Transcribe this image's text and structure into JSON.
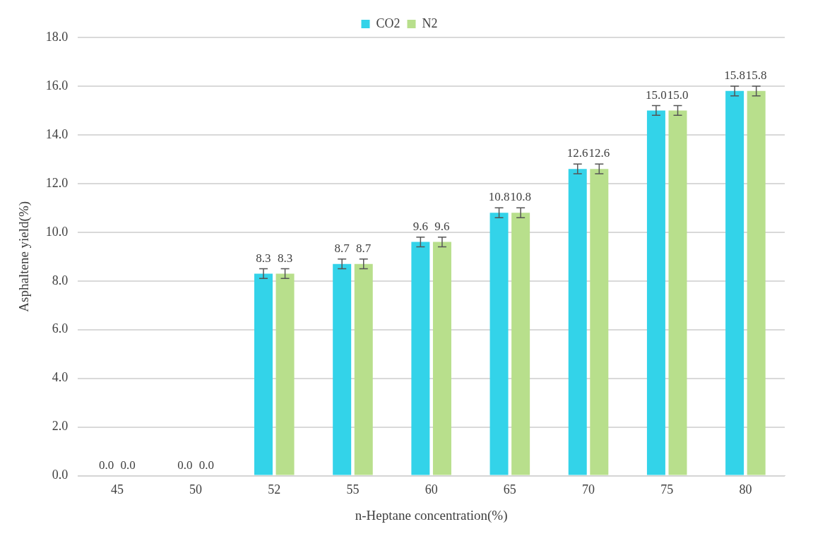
{
  "chart_data": {
    "type": "bar",
    "xlabel": "n-Heptane concentration(%)",
    "ylabel": "Asphaltene yield(%)",
    "categories": [
      "45",
      "50",
      "52",
      "55",
      "60",
      "65",
      "70",
      "75",
      "80"
    ],
    "series": [
      {
        "name": "CO2",
        "color": "#33d3e9",
        "values": [
          0.0,
          0.0,
          8.3,
          8.7,
          9.6,
          10.8,
          12.6,
          15.0,
          15.8
        ],
        "errors": [
          null,
          null,
          0.2,
          0.2,
          0.2,
          0.2,
          0.2,
          0.2,
          0.2
        ],
        "value_labels": [
          "0.0",
          "0.0",
          "8.3",
          "8.7",
          "9.6",
          "10.8",
          "12.6",
          "15.0",
          "15.8"
        ]
      },
      {
        "name": "N2",
        "color": "#b8df8c",
        "values": [
          0.0,
          0.0,
          8.3,
          8.7,
          9.6,
          10.8,
          12.6,
          15.0,
          15.8
        ],
        "errors": [
          null,
          null,
          0.2,
          0.2,
          0.2,
          0.2,
          0.2,
          0.2,
          0.2
        ],
        "value_labels": [
          "0.0",
          "0.0",
          "8.3",
          "8.7",
          "9.6",
          "10.8",
          "12.6",
          "15.0",
          "15.8"
        ]
      }
    ],
    "ylim": [
      0,
      18
    ],
    "yticks": [
      {
        "value": 0,
        "label": "0.0"
      },
      {
        "value": 2,
        "label": "2.0"
      },
      {
        "value": 4,
        "label": "4.0"
      },
      {
        "value": 6,
        "label": "6.0"
      },
      {
        "value": 8,
        "label": "8.0"
      },
      {
        "value": 10,
        "label": "10.0"
      },
      {
        "value": 12,
        "label": "12.0"
      },
      {
        "value": 14,
        "label": "14.0"
      },
      {
        "value": 16,
        "label": "16.0"
      },
      {
        "value": 18,
        "label": "18.0"
      }
    ],
    "grid": "y",
    "legend": "top"
  }
}
